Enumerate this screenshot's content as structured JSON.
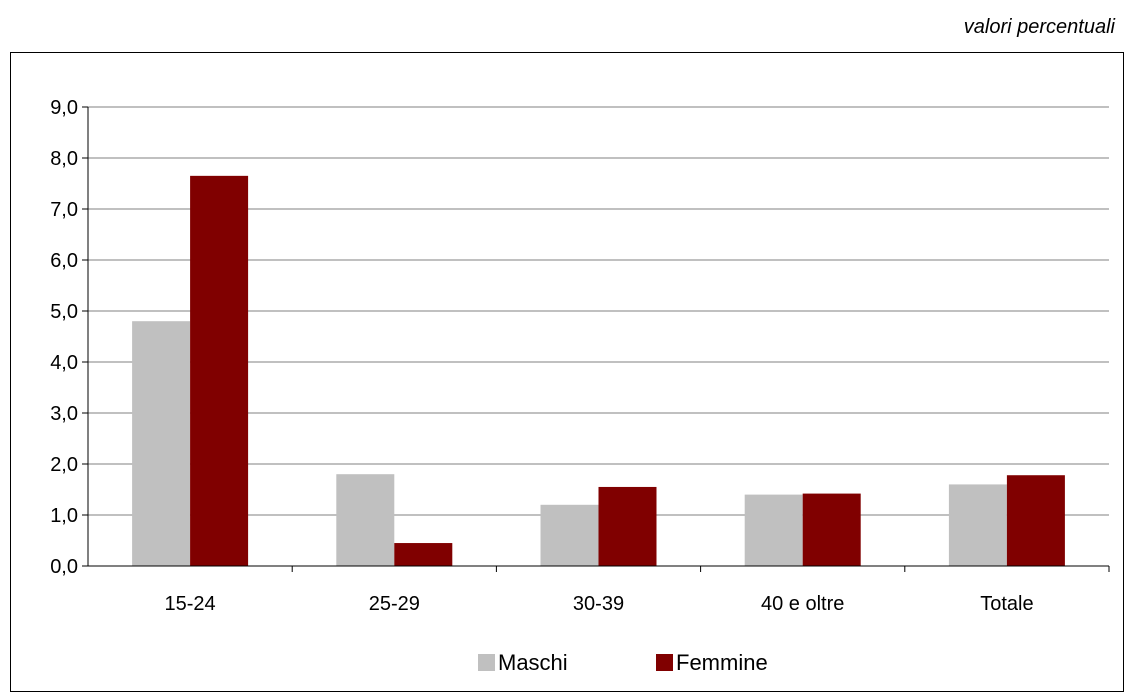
{
  "chart_data": {
    "type": "bar",
    "subtitle": "valori percentuali",
    "categories": [
      "15-24",
      "25-29",
      "30-39",
      "40 e oltre",
      "Totale"
    ],
    "series": [
      {
        "name": "Maschi",
        "values": [
          4.8,
          1.8,
          1.2,
          1.4,
          1.6
        ],
        "color": "#c0c0c0"
      },
      {
        "name": "Femmine",
        "values": [
          7.65,
          0.45,
          1.55,
          1.42,
          1.78
        ],
        "color": "#800000"
      }
    ],
    "ylim": [
      0,
      9
    ],
    "yticks": [
      "0,0",
      "1,0",
      "2,0",
      "3,0",
      "4,0",
      "5,0",
      "6,0",
      "7,0",
      "8,0",
      "9,0"
    ],
    "grid": true,
    "legend_position": "bottom"
  }
}
